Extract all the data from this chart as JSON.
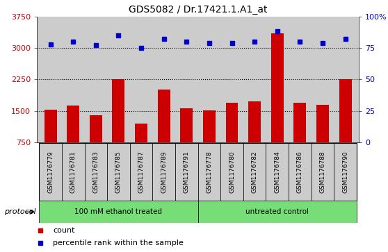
{
  "title": "GDS5082 / Dr.17421.1.A1_at",
  "samples": [
    "GSM1176779",
    "GSM1176781",
    "GSM1176783",
    "GSM1176785",
    "GSM1176787",
    "GSM1176789",
    "GSM1176791",
    "GSM1176778",
    "GSM1176780",
    "GSM1176782",
    "GSM1176784",
    "GSM1176786",
    "GSM1176788",
    "GSM1176790"
  ],
  "counts": [
    1530,
    1620,
    1400,
    2250,
    1200,
    2000,
    1560,
    1520,
    1700,
    1720,
    3350,
    1700,
    1650,
    2260
  ],
  "percentiles": [
    78,
    80,
    77,
    85,
    75,
    82,
    80,
    79,
    79,
    80,
    88,
    80,
    79,
    82
  ],
  "group1_label": "100 mM ethanol treated",
  "group2_label": "untreated control",
  "group1_count": 7,
  "group2_count": 7,
  "ylim_left": [
    750,
    3750
  ],
  "yticks_left": [
    750,
    1500,
    2250,
    3000,
    3750
  ],
  "ylim_right": [
    0,
    100
  ],
  "yticks_right": [
    0,
    25,
    50,
    75,
    100
  ],
  "bar_color": "#cc0000",
  "dot_color": "#0000cc",
  "grid_color": "#000000",
  "bg_color": "#cccccc",
  "group_bg": "#77dd77",
  "legend_count_color": "#cc0000",
  "legend_pct_color": "#0000cc",
  "grid_lines": [
    1500,
    2250,
    3000
  ]
}
